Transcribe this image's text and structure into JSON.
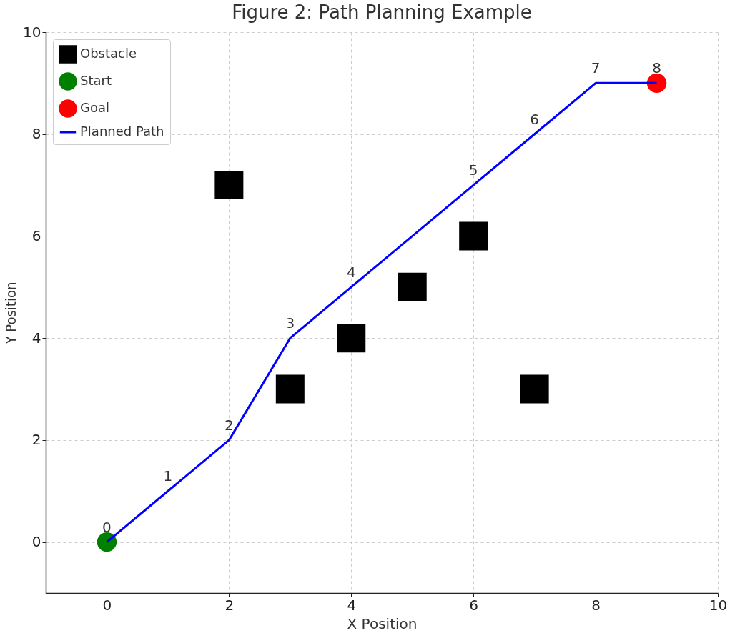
{
  "chart_data": {
    "type": "scatter",
    "title": "Figure 2: Path Planning Example",
    "xlabel": "X Position",
    "ylabel": "Y Position",
    "xlim": [
      -1,
      10
    ],
    "ylim": [
      -1,
      10
    ],
    "xticks": [
      0,
      2,
      4,
      6,
      8,
      10
    ],
    "yticks": [
      0,
      2,
      4,
      6,
      8,
      10
    ],
    "grid": true,
    "legend": "top left",
    "series": [
      {
        "name": "Obstacle",
        "marker": "square",
        "color": "#000000",
        "x": [
          2,
          3,
          4,
          5,
          6,
          7
        ],
        "values": [
          7,
          3,
          4,
          5,
          6,
          3
        ]
      },
      {
        "name": "Start",
        "marker": "circle",
        "color": "#008000",
        "x": [
          0
        ],
        "values": [
          0
        ]
      },
      {
        "name": "Goal",
        "marker": "circle",
        "color": "#ff0000",
        "x": [
          9
        ],
        "values": [
          9
        ]
      },
      {
        "name": "Planned Path",
        "type": "line",
        "marker": "none",
        "color": "#0000ff",
        "x": [
          0,
          1,
          2,
          3,
          4,
          6,
          7,
          8,
          9
        ],
        "values": [
          0,
          1,
          2,
          4,
          5,
          7,
          8,
          9,
          9
        ]
      }
    ],
    "annotations": [
      {
        "text": "0",
        "x": 0,
        "y": 0
      },
      {
        "text": "1",
        "x": 1,
        "y": 1
      },
      {
        "text": "2",
        "x": 2,
        "y": 2
      },
      {
        "text": "3",
        "x": 3,
        "y": 4
      },
      {
        "text": "4",
        "x": 4,
        "y": 5
      },
      {
        "text": "5",
        "x": 6,
        "y": 7
      },
      {
        "text": "6",
        "x": 7,
        "y": 8
      },
      {
        "text": "7",
        "x": 8,
        "y": 9
      },
      {
        "text": "8",
        "x": 9,
        "y": 9
      }
    ]
  }
}
